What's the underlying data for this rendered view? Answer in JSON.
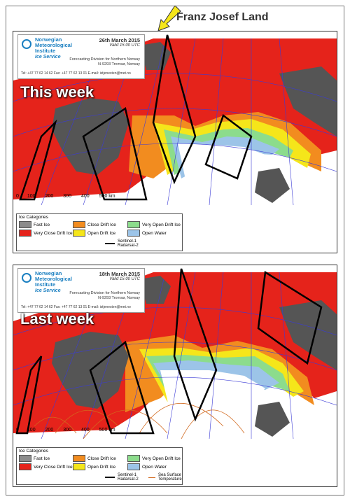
{
  "callout": {
    "label": "Franz Josef Land"
  },
  "header": {
    "institute": "Norwegian\nMeteorological\nInstitute",
    "service": "Ice Service",
    "division": "Forecasting Division for Northern Norway",
    "address": "N-9293 Tromsø, Norway",
    "contact": "Tel: +47 77 62 14 62  Fax: +47 77 62 13 01  E-mail: istjenesten@met.no"
  },
  "panels": [
    {
      "label": "This week",
      "date": "26th March 2015",
      "valid": "Valid 15:00 UTC"
    },
    {
      "label": "Last week",
      "date": "18th March 2015",
      "valid": "Valid 15:00 UTC"
    }
  ],
  "scale": [
    "0",
    "100",
    "200",
    "300",
    "400",
    "500 km"
  ],
  "legend": {
    "title": "Ice Categories",
    "items": [
      {
        "name": "Fast Ice",
        "color": "#8c8c8c"
      },
      {
        "name": "Very Close Drift Ice",
        "color": "#e5231b"
      },
      {
        "name": "Close Drift Ice",
        "color": "#f28c1f"
      },
      {
        "name": "Open Drift Ice",
        "color": "#f5e61a"
      },
      {
        "name": "Very Open Drift Ice",
        "color": "#8cdc8c"
      },
      {
        "name": "Open Water",
        "color": "#9cc4e8"
      }
    ],
    "sentinel": "Sentinel-1\nRadarsat-2",
    "sst": "Sea Surface\nTemperature"
  },
  "colors": {
    "land": "#555555",
    "sea": "#ffffff",
    "grid": "#3b3bd6",
    "sst": "#d2691e"
  }
}
